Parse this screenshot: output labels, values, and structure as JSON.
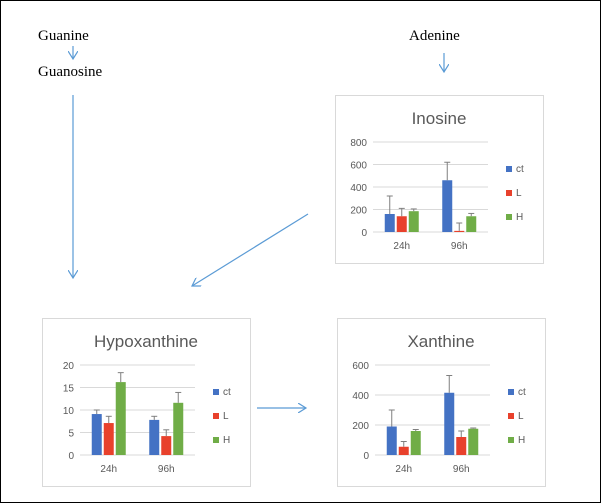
{
  "labels": {
    "guanine": "Guanine",
    "guanosine": "Guanosine",
    "adenine": "Adenine"
  },
  "colors": {
    "ct": "#4472c4",
    "L": "#e8412c",
    "H": "#70ad47",
    "arrow": "#5b9bd5",
    "grid": "#d9d9d9",
    "axis_text": "#595959"
  },
  "chart_data": [
    {
      "type": "bar",
      "title": "Inosine",
      "categories": [
        "24h",
        "96h"
      ],
      "ylim": [
        0,
        800
      ],
      "yticks": [
        0,
        200,
        400,
        600,
        800
      ],
      "grid": true,
      "legend": "right",
      "series": [
        {
          "name": "ct",
          "values": [
            160,
            460
          ],
          "errors": [
            160,
            160
          ]
        },
        {
          "name": "L",
          "values": [
            140,
            10
          ],
          "errors": [
            70,
            70
          ]
        },
        {
          "name": "H",
          "values": [
            185,
            140
          ],
          "errors": [
            20,
            25
          ]
        }
      ]
    },
    {
      "type": "bar",
      "title": "Hypoxanthine",
      "categories": [
        "24h",
        "96h"
      ],
      "ylim": [
        0,
        20
      ],
      "yticks": [
        0,
        5,
        10,
        15,
        20
      ],
      "grid": true,
      "legend": "right",
      "series": [
        {
          "name": "ct",
          "values": [
            9.1,
            7.8
          ],
          "errors": [
            0.9,
            0.8
          ]
        },
        {
          "name": "L",
          "values": [
            7.1,
            4.2
          ],
          "errors": [
            1.5,
            1.4
          ]
        },
        {
          "name": "H",
          "values": [
            16.2,
            11.6
          ],
          "errors": [
            2.1,
            2.3
          ]
        }
      ]
    },
    {
      "type": "bar",
      "title": "Xanthine",
      "categories": [
        "24h",
        "96h"
      ],
      "ylim": [
        0,
        600
      ],
      "yticks": [
        0,
        200,
        400,
        600
      ],
      "grid": true,
      "legend": "right",
      "series": [
        {
          "name": "ct",
          "values": [
            190,
            415
          ],
          "errors": [
            110,
            115
          ]
        },
        {
          "name": "L",
          "values": [
            55,
            120
          ],
          "errors": [
            35,
            40
          ]
        },
        {
          "name": "H",
          "values": [
            160,
            175
          ],
          "errors": [
            10,
            5
          ]
        }
      ]
    }
  ]
}
